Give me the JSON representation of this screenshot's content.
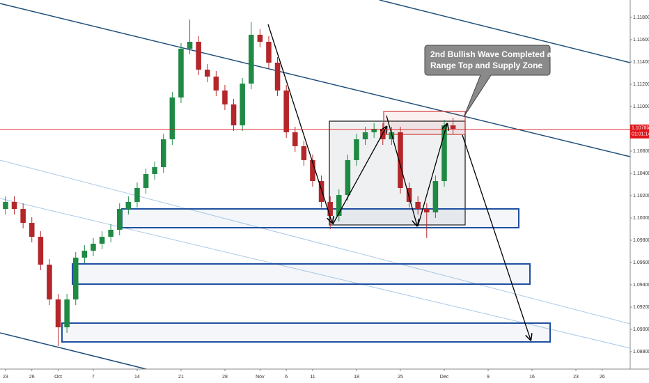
{
  "chart_data": {
    "type": "candlestick",
    "annotation": "2nd Bullish Wave Completed at Range Top and Supply Zone",
    "x": [
      0,
      1,
      2,
      3,
      4,
      5,
      6,
      7,
      8,
      9,
      10,
      11,
      12,
      13,
      14,
      15,
      16,
      17,
      18,
      19,
      20,
      21,
      22,
      23,
      24,
      25,
      26,
      27,
      28,
      29,
      30,
      31,
      32,
      33,
      34,
      35,
      36,
      37,
      38,
      39,
      40,
      41,
      42,
      43,
      44,
      45,
      46,
      47,
      48,
      49,
      50,
      51
    ],
    "open": [
      1.10081,
      1.10144,
      1.10081,
      1.09956,
      1.09831,
      1.09581,
      1.09269,
      1.09019,
      1.09269,
      1.09644,
      1.09706,
      1.09769,
      1.09831,
      1.09894,
      1.10081,
      1.10144,
      1.10269,
      1.10394,
      1.10456,
      1.10706,
      1.11081,
      1.11519,
      1.11581,
      1.11331,
      1.11269,
      1.11144,
      1.11019,
      1.10831,
      1.11206,
      1.11644,
      1.11581,
      1.11394,
      1.11144,
      1.10769,
      1.10644,
      1.10519,
      1.10331,
      1.10144,
      1.10019,
      1.10206,
      1.10519,
      1.10706,
      1.10769,
      1.108,
      1.10706,
      1.10769,
      1.10269,
      1.10144,
      1.10081,
      1.1005,
      1.10331,
      1.10831
    ],
    "high": [
      1.10194,
      1.10194,
      1.10131,
      1.10006,
      1.09881,
      1.09631,
      1.09319,
      1.09319,
      1.09694,
      1.09756,
      1.09819,
      1.09881,
      1.09944,
      1.10131,
      1.10194,
      1.10319,
      1.10444,
      1.10506,
      1.10756,
      1.11131,
      1.11569,
      1.1178,
      1.11631,
      1.11381,
      1.11319,
      1.11194,
      1.11069,
      1.11256,
      1.1176,
      1.11694,
      1.11631,
      1.11444,
      1.11194,
      1.10819,
      1.10694,
      1.10569,
      1.10381,
      1.10194,
      1.10256,
      1.10569,
      1.10756,
      1.10819,
      1.1085,
      1.1085,
      1.10819,
      1.10819,
      1.10319,
      1.10194,
      1.10131,
      1.10381,
      1.10881,
      1.109
    ],
    "low": [
      1.10031,
      1.10031,
      1.09906,
      1.09781,
      1.09531,
      1.09219,
      1.0885,
      1.08969,
      1.09219,
      1.09594,
      1.09656,
      1.09719,
      1.09781,
      1.09844,
      1.10031,
      1.10094,
      1.10219,
      1.10344,
      1.10406,
      1.10656,
      1.11031,
      1.11469,
      1.11281,
      1.11219,
      1.11094,
      1.10969,
      1.10781,
      1.10781,
      1.11156,
      1.11531,
      1.11344,
      1.11094,
      1.10719,
      1.10594,
      1.10469,
      1.10281,
      1.10094,
      1.099,
      1.09969,
      1.10156,
      1.10469,
      1.10656,
      1.10719,
      1.10656,
      1.10656,
      1.10219,
      1.10094,
      1.10031,
      1.0982,
      1.1,
      1.10281,
      1.1075
    ],
    "close": [
      1.10144,
      1.10081,
      1.09956,
      1.09831,
      1.09581,
      1.09269,
      1.09019,
      1.09269,
      1.09644,
      1.09706,
      1.09769,
      1.09831,
      1.09894,
      1.10081,
      1.10144,
      1.10269,
      1.10394,
      1.10456,
      1.10706,
      1.11081,
      1.11519,
      1.11581,
      1.11331,
      1.11269,
      1.11144,
      1.11019,
      1.10831,
      1.11206,
      1.11644,
      1.11581,
      1.11394,
      1.11144,
      1.10769,
      1.10644,
      1.10519,
      1.10331,
      1.10144,
      1.10019,
      1.10206,
      1.10519,
      1.10706,
      1.10769,
      1.108,
      1.10706,
      1.10769,
      1.10269,
      1.10144,
      1.10081,
      1.1005,
      1.10331,
      1.10831,
      1.108
    ],
    "up_color": "#1e8a44",
    "down_color": "#b3262a",
    "last_price": 1.10795,
    "countdown": "01:01:14",
    "last_price_color": "#e0171b",
    "xlim": [
      -0.63,
      71.19
    ],
    "xticks": [
      {
        "value": 0,
        "label": "23"
      },
      {
        "value": 3,
        "label": "26"
      },
      {
        "value": 6,
        "label": "Oct"
      },
      {
        "value": 10,
        "label": "7"
      },
      {
        "value": 15,
        "label": "14"
      },
      {
        "value": 20,
        "label": "21"
      },
      {
        "value": 25,
        "label": "28"
      },
      {
        "value": 29,
        "label": "Nov"
      },
      {
        "value": 32,
        "label": "6"
      },
      {
        "value": 35,
        "label": "11"
      },
      {
        "value": 40,
        "label": "18"
      },
      {
        "value": 45,
        "label": "25"
      },
      {
        "value": 50,
        "label": "Dec"
      },
      {
        "value": 55,
        "label": "9"
      },
      {
        "value": 60,
        "label": "16"
      },
      {
        "value": 65,
        "label": "23"
      },
      {
        "value": 68,
        "label": "26"
      }
    ],
    "ylim": [
      1.08644,
      1.11956
    ],
    "yticks": [
      {
        "value": 1.118,
        "label": "1.11800"
      },
      {
        "value": 1.116,
        "label": "1.11600"
      },
      {
        "value": 1.114,
        "label": "1.11400"
      },
      {
        "value": 1.112,
        "label": "1.11200"
      },
      {
        "value": 1.11,
        "label": "1.11000"
      },
      {
        "value": 1.106,
        "label": "1.10600"
      },
      {
        "value": 1.104,
        "label": "1.10400"
      },
      {
        "value": 1.102,
        "label": "1.10200"
      },
      {
        "value": 1.1,
        "label": "1.10000"
      },
      {
        "value": 1.098,
        "label": "1.09800"
      },
      {
        "value": 1.096,
        "label": "1.09600"
      },
      {
        "value": 1.094,
        "label": "1.09400"
      },
      {
        "value": 1.092,
        "label": "1.09200"
      },
      {
        "value": 1.09,
        "label": "1.09000"
      },
      {
        "value": 1.088,
        "label": "1.08800"
      }
    ],
    "grid": false
  }
}
